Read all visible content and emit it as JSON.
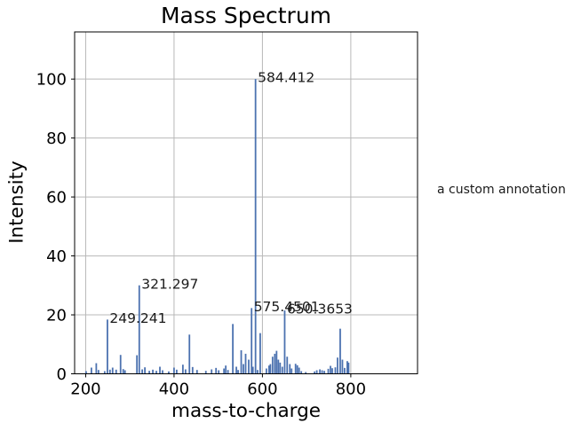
{
  "figure": {
    "title": "Mass Spectrum"
  },
  "chart_data": {
    "type": "stem",
    "title": "Mass Spectrum",
    "xlabel": "mass-to-charge",
    "ylabel": "Intensity",
    "xlim": [
      175,
      951
    ],
    "ylim": [
      0,
      116
    ],
    "x_ticks": [
      200,
      400,
      600,
      800
    ],
    "y_ticks": [
      0,
      20,
      40,
      60,
      80,
      100
    ],
    "grid": true,
    "legend": false,
    "series_color": "#4C72B0",
    "grid_color": "#b8b8b8",
    "axis_color": "#000000",
    "peaks": [
      [
        201,
        0.9
      ],
      [
        213,
        2.1
      ],
      [
        224,
        3.6
      ],
      [
        229,
        1.3
      ],
      [
        243,
        0.9
      ],
      [
        249.241,
        18.4
      ],
      [
        255,
        1.4
      ],
      [
        261,
        2.1
      ],
      [
        269,
        1.4
      ],
      [
        279,
        6.4
      ],
      [
        285,
        1.6
      ],
      [
        289,
        1.2
      ],
      [
        316,
        6.3
      ],
      [
        321.297,
        30
      ],
      [
        328,
        1.5
      ],
      [
        334,
        2.2
      ],
      [
        344,
        1.0
      ],
      [
        352,
        1.4
      ],
      [
        360,
        1.0
      ],
      [
        368,
        2.4
      ],
      [
        374,
        1.2
      ],
      [
        388,
        0.8
      ],
      [
        400,
        2.1
      ],
      [
        406,
        1.4
      ],
      [
        420,
        3.1
      ],
      [
        426,
        1.5
      ],
      [
        434.8,
        13.3
      ],
      [
        442,
        2.3
      ],
      [
        452,
        1.3
      ],
      [
        472,
        1.0
      ],
      [
        485,
        1.5
      ],
      [
        495,
        2.0
      ],
      [
        501,
        1.2
      ],
      [
        513,
        1.8
      ],
      [
        517,
        2.8
      ],
      [
        522,
        1.3
      ],
      [
        533,
        16.9
      ],
      [
        541,
        2.4
      ],
      [
        545,
        1.3
      ],
      [
        552,
        8.0
      ],
      [
        557,
        3.3
      ],
      [
        562,
        6.8
      ],
      [
        569,
        4.8
      ],
      [
        575.4501,
        22.3
      ],
      [
        578.5,
        2.4
      ],
      [
        584.412,
        100
      ],
      [
        589,
        1.3
      ],
      [
        595,
        13.8
      ],
      [
        609,
        1.8
      ],
      [
        615,
        2.8
      ],
      [
        618,
        3.3
      ],
      [
        623,
        5.8
      ],
      [
        628,
        6.8
      ],
      [
        632,
        7.8
      ],
      [
        636,
        4.8
      ],
      [
        640,
        3.8
      ],
      [
        645,
        2.4
      ],
      [
        650.3653,
        21.5
      ],
      [
        656,
        5.8
      ],
      [
        662,
        3.3
      ],
      [
        666,
        1.8
      ],
      [
        675,
        3.4
      ],
      [
        679,
        2.9
      ],
      [
        683,
        2.1
      ],
      [
        688,
        0.9
      ],
      [
        698,
        0.6
      ],
      [
        718,
        0.8
      ],
      [
        723,
        1.2
      ],
      [
        730,
        1.5
      ],
      [
        735,
        1.2
      ],
      [
        740,
        1.0
      ],
      [
        749,
        1.7
      ],
      [
        754,
        2.7
      ],
      [
        758,
        1.9
      ],
      [
        765,
        2.2
      ],
      [
        770,
        5.5
      ],
      [
        776,
        15.3
      ],
      [
        781,
        4.8
      ],
      [
        786,
        2.0
      ],
      [
        792,
        4.3
      ],
      [
        795,
        3.8
      ]
    ],
    "peak_labels": [
      {
        "text": "249.241",
        "mz": 249.241,
        "intensity": 18.4
      },
      {
        "text": "321.297",
        "mz": 321.297,
        "intensity": 30
      },
      {
        "text": "575.4501",
        "mz": 575.4501,
        "intensity": 22.3
      },
      {
        "text": "584.412",
        "mz": 584.412,
        "intensity": 100
      },
      {
        "text": "650.3653",
        "mz": 650.3653,
        "intensity": 21.5
      }
    ],
    "extra_annotation": {
      "text": "a custom annotation"
    }
  }
}
